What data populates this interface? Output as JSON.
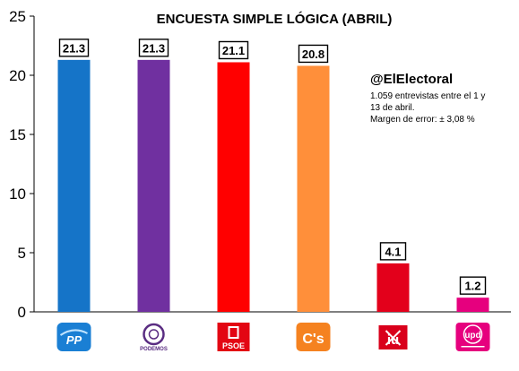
{
  "chart_data": {
    "type": "bar",
    "title": "ENCUESTA SIMPLE LÓGICA (ABRIL)",
    "xlabel": "",
    "ylabel": "",
    "ylim": [
      0,
      25
    ],
    "yticks": [
      0,
      5,
      10,
      15,
      20,
      25
    ],
    "grid": false,
    "legend": "none",
    "categories": [
      "PP",
      "PODEMOS",
      "PSOE",
      "C's",
      "IU",
      "UPyD"
    ],
    "values": [
      21.3,
      21.3,
      21.1,
      20.8,
      4.1,
      1.2
    ],
    "value_labels": [
      "21.3",
      "21.3",
      "21.1",
      "20.8",
      "4.1",
      "1.2"
    ],
    "colors": [
      "#1574C8",
      "#7030A0",
      "#FF0000",
      "#FF8F3A",
      "#E3001B",
      "#E6007E"
    ],
    "logos": [
      {
        "name": "pp-logo",
        "text": "PP"
      },
      {
        "name": "podemos-logo",
        "text": "PODEMOS"
      },
      {
        "name": "psoe-logo",
        "text": "PSOE"
      },
      {
        "name": "ciudadanos-logo",
        "text": "C's"
      },
      {
        "name": "iu-logo",
        "text": "iu"
      },
      {
        "name": "upyd-logo",
        "text": "upd"
      }
    ],
    "annotation": {
      "handle": "@ElElectoral",
      "lines": [
        "1.059 entrevistas entre el 1 y",
        "13 de abril.",
        "Margen de error: ± 3,08 %"
      ]
    }
  }
}
